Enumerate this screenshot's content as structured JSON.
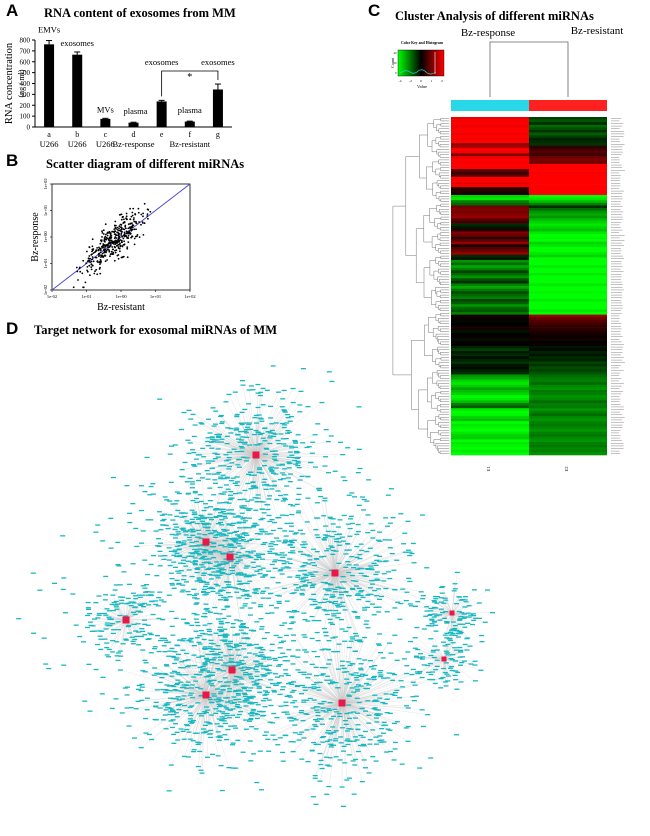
{
  "panelA": {
    "letter": "A",
    "title": "RNA content of exosomes from MM",
    "chart_data": {
      "type": "bar",
      "title": "RNA content of exosomes from MM",
      "ylabel": "RNA concentration",
      "yunit": "(ng / ml)",
      "ylim": [
        0,
        800
      ],
      "yticks": [
        0,
        100,
        200,
        300,
        400,
        500,
        600,
        700,
        800
      ],
      "categories": [
        "a",
        "b",
        "c",
        "d",
        "e",
        "f",
        "g"
      ],
      "groups": [
        "U266",
        "U266",
        "U266",
        "Bz-response",
        "",
        "Bz-resistant",
        ""
      ],
      "values": [
        760,
        665,
        75,
        40,
        235,
        50,
        345
      ],
      "errors": [
        35,
        25,
        5,
        4,
        10,
        4,
        50
      ],
      "bar_labels": [
        "EMVs",
        "exosomes",
        "MVs",
        "plasma",
        "exosomes",
        "plasma",
        "exosomes"
      ],
      "significance": "*"
    }
  },
  "panelB": {
    "letter": "B",
    "title": "Scatter diagram of different miRNAs",
    "chart_data": {
      "type": "scatter",
      "title": "Scatter diagram of different miRNAs",
      "xlabel": "Bz-resistant",
      "ylabel": "Bz-response",
      "xscale": "log",
      "yscale": "log",
      "xlim": [
        0.01,
        100
      ],
      "ylim": [
        0.01,
        100
      ],
      "xticks": [
        "1e-02",
        "1e-01",
        "1e+00",
        "1e+01",
        "1e+02"
      ],
      "yticks": [
        "1e-02",
        "1e-01",
        "1e+00",
        "1e+01",
        "1e+02"
      ],
      "reference_line": "y = x",
      "n_points": 420
    }
  },
  "panelC": {
    "letter": "C",
    "title": "Cluster Analysis of different miRNAs",
    "chart_data": {
      "type": "heatmap",
      "title": "Cluster Analysis of different miRNAs",
      "columns": [
        "Bz-response",
        "Bz-resistant"
      ],
      "column_codes": [
        "E1",
        "E2"
      ],
      "column_colors": [
        "#28d8e8",
        "#ff2020"
      ],
      "key_title": "Color Key and Histogram",
      "key_ylabel": "Count",
      "key_xlabel": "Value",
      "key_ticks": [
        "-4",
        "-2",
        "0",
        "1",
        "2"
      ],
      "key_count_ticks": [
        "0",
        "20",
        "40"
      ],
      "n_rows": 130,
      "row_values_E1": [
        5.5,
        5.8,
        6.0,
        5.6,
        6.2,
        5.9,
        5.7,
        6.1,
        5.8,
        6.0,
        3.5,
        4.0,
        6.0,
        5.8,
        3.0,
        5.5,
        6.0,
        5.9,
        6.2,
        6.0,
        2.2,
        1.5,
        2.0,
        6.5,
        6.0,
        5.5,
        5.8,
        0.8,
        1.0,
        0.5,
        -5.0,
        -5.5,
        -3.0,
        -2.5,
        2.5,
        3.0,
        2.8,
        3.2,
        3.5,
        2.0,
        1.5,
        -1.0,
        -0.5,
        0.8,
        3.0,
        2.5,
        1.0,
        2.2,
        3.5,
        0.5,
        2.0,
        2.5,
        3.5,
        -1.0,
        -0.5,
        -3.5,
        -2.5,
        -4.0,
        -3.0,
        -1.5,
        -2.5,
        -3.5,
        -2.0,
        -1.0,
        -3.0,
        -4.0,
        -2.8,
        -1.8,
        -2.5,
        -3.0,
        -1.5,
        -2.2,
        -3.5,
        -2.5,
        -2.0,
        -3.0,
        0.5,
        0.2,
        -0.2,
        0.0,
        0.3,
        0.5,
        -0.5,
        0.0,
        0.2,
        -0.3,
        0.2,
        0.0,
        -0.8,
        -1.5,
        -0.5,
        -1.0,
        -0.3,
        -0.8,
        -1.2,
        -0.5,
        -0.2,
        -0.8,
        -1.0,
        -3.5,
        -4.0,
        -5.0,
        -5.5,
        -4.8,
        -3.8,
        -4.5,
        -5.0,
        -6.0,
        -5.5,
        -4.5,
        -3.0,
        -2.0,
        -5.5,
        -6.0,
        -5.8,
        -5.0,
        -4.5,
        -6.0,
        -5.5,
        -5.8,
        -6.0,
        -5.5,
        -5.0,
        -4.8,
        -6.0,
        -5.5,
        -5.8,
        -6.0,
        -5.5,
        -6.0
      ],
      "row_values_E2": [
        -1.5,
        -2.0,
        -1.0,
        -2.5,
        -1.8,
        -1.2,
        -2.2,
        -1.5,
        -0.8,
        -1.0,
        -1.2,
        1.0,
        1.5,
        2.0,
        1.5,
        2.5,
        3.0,
        2.5,
        6.0,
        6.5,
        6.0,
        5.8,
        6.2,
        6.5,
        6.2,
        6.0,
        6.5,
        6.0,
        6.5,
        6.2,
        -6.0,
        -5.5,
        -4.5,
        -3.0,
        -1.0,
        -2.5,
        -3.5,
        -4.0,
        -3.5,
        -4.5,
        -5.0,
        -5.5,
        -5.0,
        -4.5,
        -5.5,
        -6.0,
        -5.8,
        -6.0,
        -5.0,
        -5.5,
        -6.5,
        -6.0,
        -5.5,
        -5.0,
        -6.5,
        -6.5,
        -6.0,
        -5.5,
        -6.5,
        -6.0,
        -5.5,
        -6.0,
        -6.5,
        -6.0,
        -5.5,
        -6.0,
        -6.5,
        -5.8,
        -6.0,
        -6.5,
        -5.5,
        -6.0,
        -6.5,
        -6.0,
        -5.5,
        -6.5,
        3.5,
        2.5,
        2.0,
        1.5,
        1.2,
        1.0,
        0.8,
        0.5,
        0.2,
        0.5,
        0.0,
        0.3,
        -0.5,
        -0.2,
        -0.8,
        -0.5,
        -1.0,
        -0.8,
        -1.5,
        -1.2,
        -1.8,
        -1.5,
        -2.0,
        -2.5,
        -2.8,
        -3.0,
        -2.5,
        -3.2,
        -3.5,
        -2.8,
        -3.0,
        -3.5,
        -3.2,
        -2.5,
        -3.0,
        -2.8,
        -3.5,
        -3.0,
        -2.5,
        -3.2,
        -3.5,
        -3.0,
        -2.8,
        -3.2,
        -3.5,
        -3.0,
        -2.8,
        -3.2,
        -3.5,
        -3.0,
        -2.8,
        -3.2,
        -3.0,
        -3.5
      ]
    }
  },
  "panelD": {
    "letter": "D",
    "title": "Target  network  for  exosomal  miRNAs of MM",
    "hub_color": "#e8184a",
    "target_color": "#18b8c0",
    "edge_color": "#c8c8c8",
    "n_hubs": 10,
    "n_targets": 2600
  }
}
